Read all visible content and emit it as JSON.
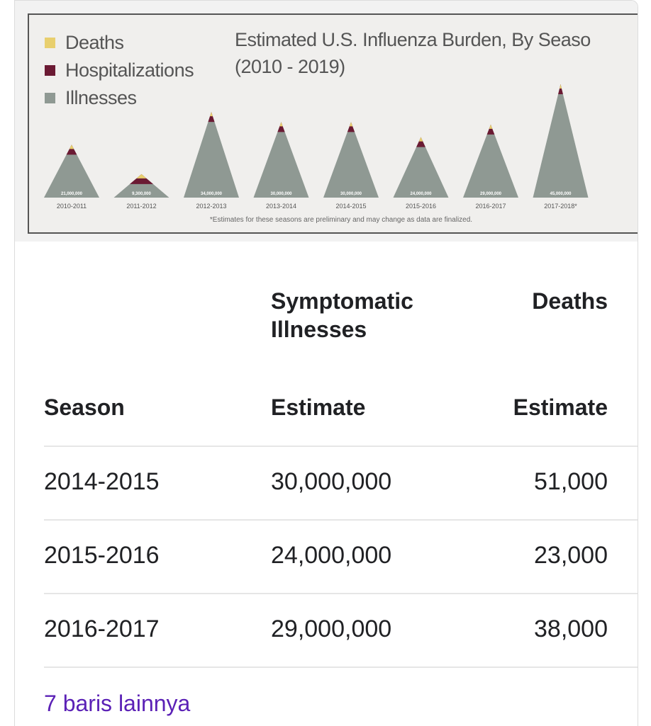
{
  "chart": {
    "title_line1": "Estimated U.S. Influenza Burden, By Seaso",
    "title_line2": "(2010 - 2019)",
    "legend": [
      {
        "label": "Deaths",
        "color": "#e8cf6e"
      },
      {
        "label": "Hospitalizations",
        "color": "#6b1a33"
      },
      {
        "label": "Illnesses",
        "color": "#8f9993"
      }
    ],
    "footnote": "*Estimates for these seasons are preliminary and may change as data are finalized.",
    "seasons": [
      "2010-2011",
      "2011-2012",
      "2012-2013",
      "2013-2014",
      "2014-2015",
      "2015-2016",
      "2016-2017",
      "2017-2018*"
    ],
    "illness_labels": [
      "21,000,000",
      "9,300,000",
      "34,000,000",
      "30,000,000",
      "30,000,000",
      "24,000,000",
      "29,000,000",
      "45,000,000"
    ],
    "illness_values": [
      21000000,
      9300000,
      34000000,
      30000000,
      30000000,
      24000000,
      29000000,
      45000000
    ]
  },
  "table": {
    "col_headers_top": [
      "",
      "Symptomatic Illnesses",
      "Deaths"
    ],
    "col_headers_bottom": [
      "Season",
      "Estimate",
      "Estimate"
    ],
    "rows": [
      [
        "2014-2015",
        "30,000,000",
        "51,000"
      ],
      [
        "2015-2016",
        "24,000,000",
        "23,000"
      ],
      [
        "2016-2017",
        "29,000,000",
        "38,000"
      ]
    ],
    "more_link": "7 baris lainnya"
  }
}
